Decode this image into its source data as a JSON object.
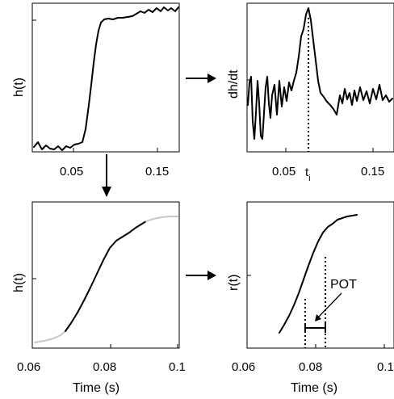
{
  "chart_data": [
    {
      "type": "line",
      "position": "top-left",
      "ylabel": "h(t)",
      "xlabel": "",
      "xticks": [
        "0.05",
        "0.15"
      ],
      "x": [
        0.02,
        0.03,
        0.04,
        0.05,
        0.06,
        0.065,
        0.07,
        0.075,
        0.08,
        0.085,
        0.09,
        0.1,
        0.11,
        0.12,
        0.13,
        0.14,
        0.15,
        0.16
      ],
      "y": [
        0.05,
        0.02,
        0.04,
        0.03,
        0.06,
        0.12,
        0.2,
        0.4,
        0.7,
        0.9,
        0.96,
        0.95,
        0.97,
        0.96,
        0.98,
        0.99,
        1.0,
        1.0
      ]
    },
    {
      "type": "line",
      "position": "top-right",
      "ylabel": "dh/dt",
      "xlabel": "",
      "xticks": [
        "0.05",
        "0.15"
      ],
      "annotation": "t",
      "annotation_sub": "i",
      "marker_x": 0.078,
      "x": [
        0.02,
        0.025,
        0.03,
        0.035,
        0.04,
        0.045,
        0.05,
        0.055,
        0.06,
        0.065,
        0.07,
        0.075,
        0.078,
        0.082,
        0.087,
        0.092,
        0.1,
        0.11,
        0.12,
        0.13,
        0.14,
        0.15,
        0.16
      ],
      "y": [
        0.5,
        0.0,
        0.45,
        0.3,
        0.5,
        0.35,
        0.45,
        0.4,
        0.5,
        0.55,
        0.72,
        0.92,
        1.0,
        0.9,
        0.65,
        0.45,
        0.3,
        0.35,
        0.28,
        0.33,
        0.3,
        0.32,
        0.3
      ]
    },
    {
      "type": "line",
      "position": "bottom-left",
      "ylabel": "h(t)",
      "xlabel": "Time (s)",
      "xticks": [
        "0.06",
        "0.08",
        "0.1"
      ],
      "highlight_range": [
        0.07,
        0.095
      ],
      "x": [
        0.06,
        0.065,
        0.07,
        0.075,
        0.08,
        0.085,
        0.09,
        0.095,
        0.1,
        0.105
      ],
      "y": [
        0.03,
        0.05,
        0.1,
        0.3,
        0.52,
        0.72,
        0.87,
        0.95,
        0.98,
        0.99
      ]
    },
    {
      "type": "line",
      "position": "bottom-right",
      "ylabel": "r(t)",
      "xlabel": "Time (s)",
      "xticks": [
        "0.06",
        "0.08",
        "0.1"
      ],
      "annotation": "POT",
      "markers_x": [
        0.078,
        0.084
      ],
      "x": [
        0.07,
        0.075,
        0.08,
        0.085,
        0.09,
        0.095
      ],
      "y": [
        0.05,
        0.25,
        0.52,
        0.72,
        0.88,
        0.95
      ]
    }
  ]
}
